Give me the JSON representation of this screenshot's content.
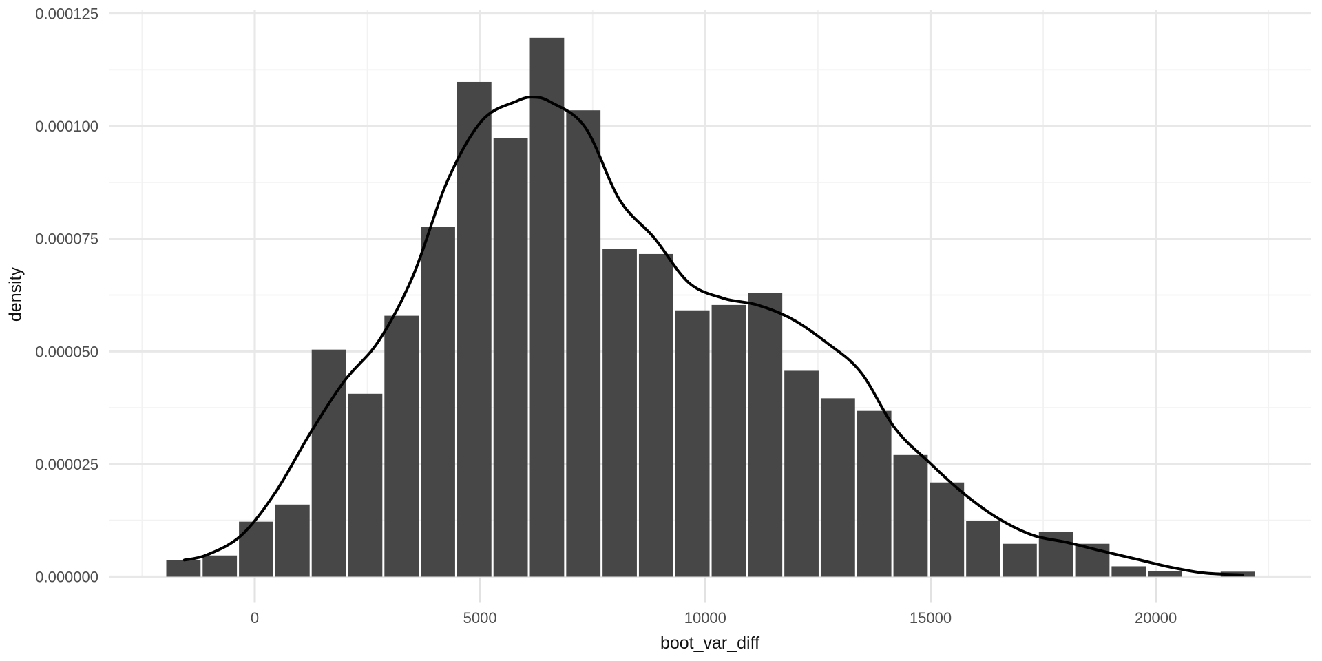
{
  "figure": {
    "background": "#ffffff"
  },
  "chart_data": {
    "type": "bar",
    "subtype": "histogram_with_density_curve",
    "title": "",
    "xlabel": "boot_var_diff",
    "ylabel": "density",
    "xlim": [
      -3240,
      23444
    ],
    "ylim": [
      0,
      0.00012584
    ],
    "grid": "on",
    "legend": "none",
    "x_ticks": {
      "values": [
        0,
        5000,
        10000,
        15000,
        20000
      ],
      "labels": [
        "0",
        "5000",
        "10000",
        "15000",
        "20000"
      ]
    },
    "x_minor_ticks": [
      -2500,
      2500,
      7500,
      12500,
      17500,
      22500
    ],
    "y_ticks": {
      "values": [
        0,
        2.5e-05,
        5e-05,
        7.5e-05,
        0.0001,
        0.000125
      ],
      "labels": [
        "0.000000",
        "0.000025",
        "0.000050",
        "0.000075",
        "0.000100",
        "0.000125"
      ]
    },
    "y_minor_ticks": [
      1.25e-05,
      3.75e-05,
      6.25e-05,
      8.75e-05,
      0.0001125
    ],
    "bin_width": 807,
    "bin_starts": [
      -1987,
      -1180,
      -373,
      434,
      1241,
      2048,
      2855,
      3662,
      4469,
      5276,
      6083,
      6890,
      7697,
      8504,
      9311,
      10118,
      10925,
      11732,
      12539,
      13346,
      14153,
      14960,
      15767,
      16574,
      17381,
      18188,
      18995,
      19802,
      20609,
      21416
    ],
    "densities": [
      3.7e-06,
      4.7e-06,
      1.22e-05,
      1.6e-05,
      5.04e-05,
      4.06e-05,
      5.79e-05,
      7.77e-05,
      0.0001098,
      9.73e-05,
      0.0001196,
      0.0001035,
      7.27e-05,
      7.16e-05,
      5.91e-05,
      6.03e-05,
      6.29e-05,
      4.57e-05,
      3.96e-05,
      3.68e-05,
      2.7e-05,
      2.09e-05,
      1.24e-05,
      7.3e-06,
      9.9e-06,
      7.3e-06,
      2.3e-06,
      1.2e-06,
      0,
      1.1e-06
    ],
    "density_curve": {
      "x": [
        -1560,
        -1070,
        -306,
        459,
        1223,
        1987,
        2751,
        3515,
        4279,
        5044,
        5808,
        6190,
        6572,
        7336,
        8100,
        8864,
        9628,
        10392,
        11157,
        11921,
        12685,
        13449,
        14213,
        14977,
        15741,
        16506,
        17270,
        18034,
        18798,
        19562,
        20326,
        21090,
        21931
      ],
      "y": [
        3.7e-06,
        4.8e-06,
        9.1e-06,
        1.87e-05,
        3.17e-05,
        4.34e-05,
        5.23e-05,
        6.68e-05,
        8.79e-05,
        0.0001012,
        0.0001055,
        0.0001064,
        0.0001053,
        9.97e-05,
        8.36e-05,
        7.52e-05,
        6.53e-05,
        6.18e-05,
        6.03e-05,
        5.72e-05,
        5.2e-05,
        4.54e-05,
        3.29e-05,
        2.53e-05,
        1.84e-05,
        1.29e-05,
        9.2e-06,
        7.6e-06,
        5.7e-06,
        3.9e-06,
        2.1e-06,
        8e-07,
        4e-07
      ]
    },
    "colors": {
      "bar_fill": "#474747",
      "bar_gap": "#ffffff",
      "curve": "#000000",
      "grid_major": "#e8e8e8",
      "grid_minor": "#f2f2f2",
      "axis_tick": "#e2e2e2",
      "tick_label": "#4d4d4d",
      "axis_title": "#111111"
    }
  }
}
